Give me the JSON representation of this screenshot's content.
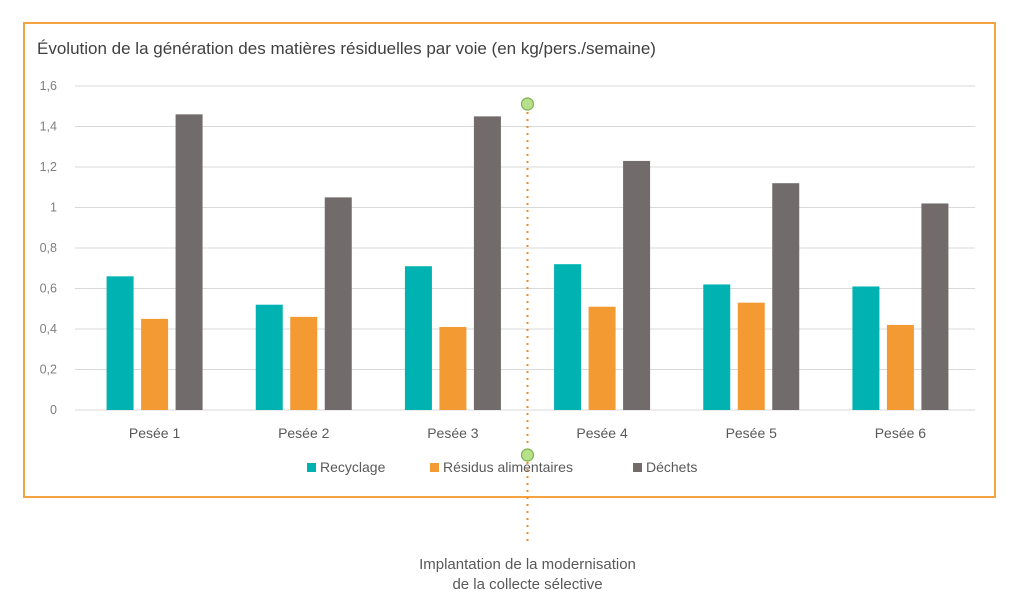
{
  "colors": {
    "frame": "#f4a340",
    "grid": "#d9d9d9",
    "annotation_line": "#f08a24",
    "annotation_marker": "#b6e08a",
    "annotation_marker_stroke": "#7fb04a"
  },
  "chart_data": {
    "type": "bar",
    "title": "Évolution de la génération des matières résiduelles par voie (en kg/pers./semaine)",
    "xlabel": "",
    "ylabel": "",
    "ylim": [
      0,
      1.6
    ],
    "yticks": [
      0,
      0.2,
      0.4,
      0.6,
      0.8,
      1.0,
      1.2,
      1.4,
      1.6
    ],
    "ytick_labels": [
      "0",
      "0,2",
      "0,4",
      "0,6",
      "0,8",
      "1",
      "1,2",
      "1,4",
      "1,6"
    ],
    "grid": true,
    "legend_position": "bottom",
    "categories": [
      "Pesée 1",
      "Pesée 2",
      "Pesée 3",
      "Pesée 4",
      "Pesée 5",
      "Pesée 6"
    ],
    "series": [
      {
        "name": "Recyclage",
        "color": "#00b2b2",
        "values": [
          0.66,
          0.52,
          0.71,
          0.72,
          0.62,
          0.61
        ]
      },
      {
        "name": "Résidus alimentaires",
        "color": "#f39a33",
        "values": [
          0.45,
          0.46,
          0.41,
          0.51,
          0.53,
          0.42
        ]
      },
      {
        "name": "Déchets",
        "color": "#716c6b",
        "values": [
          1.46,
          1.05,
          1.45,
          1.23,
          1.12,
          1.02
        ]
      }
    ],
    "annotation": {
      "between_categories": [
        "Pesée 3",
        "Pesée 4"
      ],
      "label_lines": [
        "Implantation de la modernisation",
        "de la collecte sélective"
      ]
    }
  }
}
